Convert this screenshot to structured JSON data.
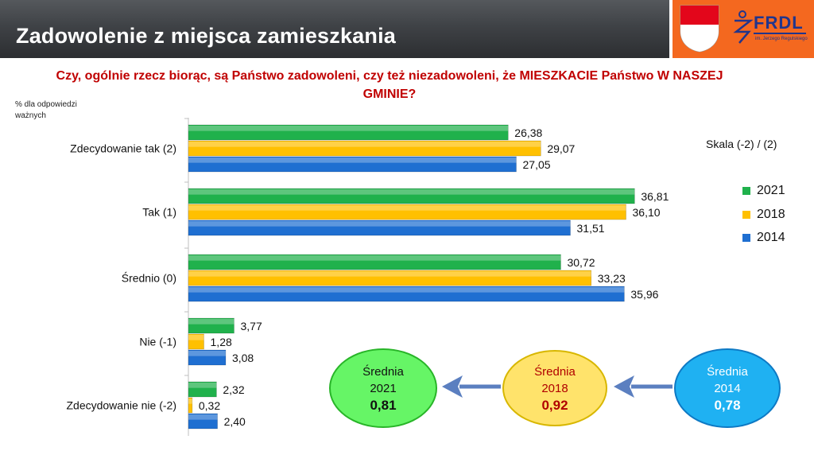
{
  "header": {
    "title": "Zadowolenie z miejsca zamieszkania"
  },
  "logo": {
    "text": "FRDL",
    "subtext": "im. Jerzego Regulskiego"
  },
  "question": "Czy, ogólnie rzecz biorąc, są Państwo zadowoleni, czy też niezadowoleni, że MIESZKACIE Państwo W NASZEJ GMINIE?",
  "note": "% dla odpowiedzi ważnych",
  "scale_label": "Skala (-2) / (2)",
  "legend": [
    {
      "label": "2021",
      "color": "#20b14c"
    },
    {
      "label": "2018",
      "color": "#ffc000"
    },
    {
      "label": "2014",
      "color": "#1f6fd1"
    }
  ],
  "chart_data": {
    "type": "bar",
    "orientation": "horizontal",
    "categories": [
      "Zdecydowanie tak (2)",
      "Tak (1)",
      "Średnio (0)",
      "Nie (-1)",
      "Zdecydowanie nie (-2)"
    ],
    "series": [
      {
        "name": "2021",
        "values": [
          26.38,
          36.81,
          30.72,
          3.77,
          2.32
        ],
        "labels": [
          "26,38",
          "36,81",
          "30,72",
          "3,77",
          "2,32"
        ]
      },
      {
        "name": "2018",
        "values": [
          29.07,
          36.1,
          33.23,
          1.28,
          0.32
        ],
        "labels": [
          "29,07",
          "36,10",
          "33,23",
          "1,28",
          "0,32"
        ]
      },
      {
        "name": "2014",
        "values": [
          27.05,
          31.51,
          35.96,
          3.08,
          2.4
        ],
        "labels": [
          "27,05",
          "31,51",
          "35,96",
          "3,08",
          "2,40"
        ]
      }
    ],
    "xlim": [
      0,
      40
    ],
    "grid": false,
    "legend_position": "right"
  },
  "averages": [
    {
      "label": "Średnia",
      "year": "2021",
      "value": "0,81"
    },
    {
      "label": "Średnia",
      "year": "2018",
      "value": "0,92"
    },
    {
      "label": "Średnia",
      "year": "2014",
      "value": "0,78"
    }
  ],
  "colors": {
    "header_bg": "#3f4246",
    "logo_bg": "#f4681f",
    "question": "#c00000",
    "arrow": "#5b7fc0"
  }
}
